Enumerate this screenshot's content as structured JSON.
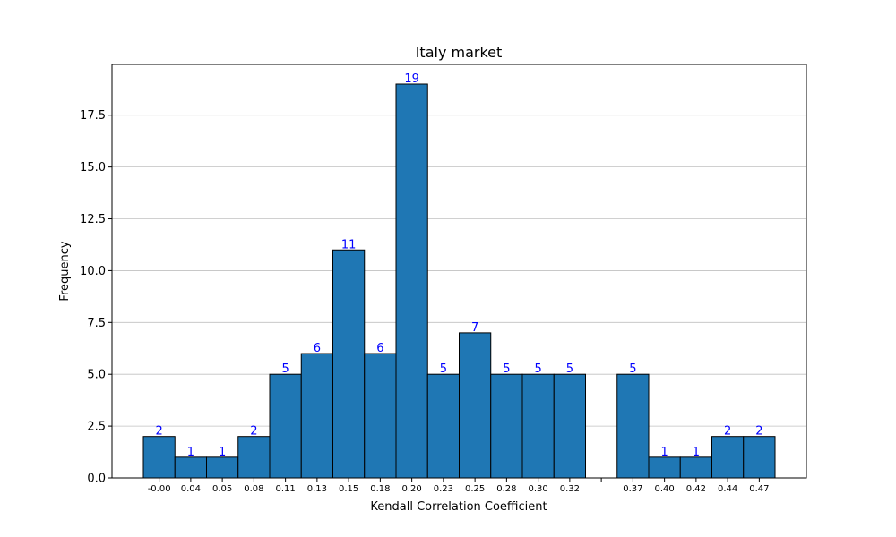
{
  "chart_data": {
    "type": "bar",
    "title": "Italy market",
    "xlabel": "Kendall Correlation Coefficient",
    "ylabel": "Frequency",
    "x_tick_labels": [
      "-0.00",
      "0.04",
      "0.05",
      "0.08",
      "0.11",
      "0.13",
      "0.15",
      "0.18",
      "0.20",
      "0.23",
      "0.25",
      "0.28",
      "0.30",
      "0.32",
      "",
      "0.37",
      "0.40",
      "0.42",
      "0.44",
      "0.47"
    ],
    "values": [
      2,
      1,
      1,
      2,
      5,
      6,
      11,
      6,
      19,
      5,
      7,
      5,
      5,
      5,
      0,
      5,
      1,
      1,
      2,
      2
    ],
    "data_labels": [
      "2",
      "1",
      "1",
      "2",
      "5",
      "6",
      "11",
      "6",
      "19",
      "5",
      "7",
      "5",
      "5",
      "5",
      "",
      "5",
      "1",
      "1",
      "2",
      "2"
    ],
    "ylim": [
      0,
      20
    ],
    "y_ticks": [
      "0.0",
      "2.5",
      "5.0",
      "7.5",
      "10.0",
      "12.5",
      "15.0",
      "17.5"
    ],
    "grid": "y",
    "colors": {
      "bar": "#1f77b4",
      "edge": "#000000",
      "label": "#0000ff",
      "grid": "#c0c0c0"
    }
  }
}
